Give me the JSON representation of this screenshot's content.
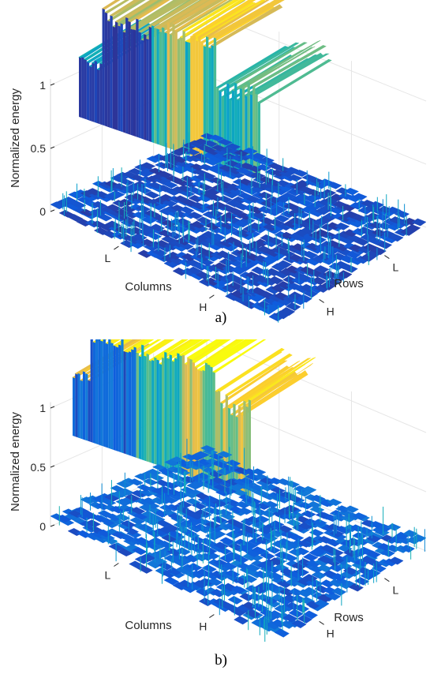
{
  "chart_data": [
    {
      "type": "surface",
      "caption": "a)",
      "zlabel": "Normalized energy",
      "xlabel": "Columns",
      "ylabel": "Rows",
      "z_ticks": [
        "0",
        "0.5",
        "1"
      ],
      "x_ticks": [
        "L",
        "H"
      ],
      "y_ticks": [
        "H",
        "L"
      ],
      "zlim": [
        0,
        1
      ],
      "grid": true,
      "colormap": "parula"
    },
    {
      "type": "surface",
      "caption": "b)",
      "zlabel": "Normalized energy",
      "xlabel": "Columns",
      "ylabel": "Rows",
      "z_ticks": [
        "0",
        "0.5",
        "1"
      ],
      "x_ticks": [
        "L",
        "H"
      ],
      "y_ticks": [
        "H",
        "L"
      ],
      "zlim": [
        0,
        1
      ],
      "grid": true,
      "colormap": "parula"
    }
  ]
}
